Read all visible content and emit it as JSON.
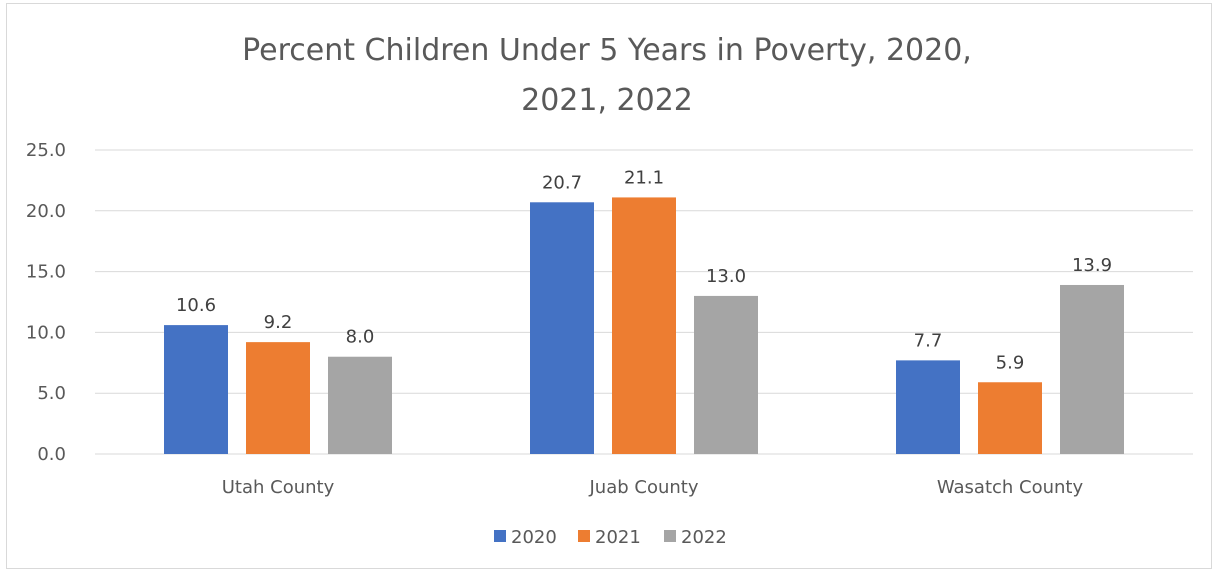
{
  "chart_data": {
    "type": "bar",
    "title": "Percent Children Under 5 Years in Poverty, 2020, 2021, 2022",
    "title_lines": [
      "Percent Children Under 5 Years in Poverty, 2020,",
      "2021, 2022"
    ],
    "categories": [
      "Utah County",
      "Juab County",
      "Wasatch County"
    ],
    "series": [
      {
        "name": "2020",
        "color": "#4472c4",
        "values": [
          10.6,
          20.7,
          7.7
        ],
        "labels": [
          "10.6",
          "20.7",
          "7.7"
        ]
      },
      {
        "name": "2021",
        "color": "#ed7d31",
        "values": [
          9.2,
          21.1,
          5.9
        ],
        "labels": [
          "9.2",
          "21.1",
          "5.9"
        ]
      },
      {
        "name": "2022",
        "color": "#a5a5a5",
        "values": [
          8.0,
          13.0,
          13.9
        ],
        "labels": [
          "8.0",
          "13.0",
          "13.9"
        ]
      }
    ],
    "ylim": [
      0,
      25
    ],
    "yticks": [
      "0.0",
      "5.0",
      "10.0",
      "15.0",
      "20.0",
      "25.0"
    ],
    "ytick_values": [
      0,
      5,
      10,
      15,
      20,
      25
    ],
    "xlabel": "",
    "ylabel": "",
    "grid": true,
    "legend_position": "bottom"
  }
}
